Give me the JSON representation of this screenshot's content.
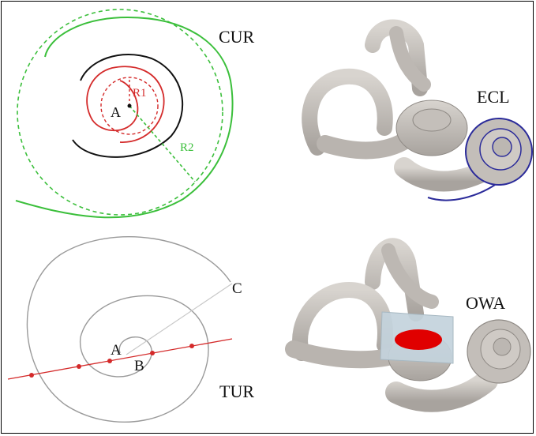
{
  "panels": {
    "cur": {
      "label": "CUR",
      "point_label": "A",
      "r1_label": "R1",
      "r2_label": "R2"
    },
    "ecl": {
      "label": "ECL"
    },
    "tur": {
      "label": "TUR",
      "point_a": "A",
      "point_b": "B",
      "point_c": "C"
    },
    "owa": {
      "label": "OWA"
    }
  },
  "colors": {
    "black": "#111111",
    "red": "#d42a2a",
    "green": "#3bbf3b",
    "blue": "#2b2b9a",
    "bone": "#c9c5c0",
    "bone_dark": "#8f8a85",
    "window_red": "#e00000",
    "plane": "#c3d3dc",
    "gray_line": "#9a9a9a"
  }
}
